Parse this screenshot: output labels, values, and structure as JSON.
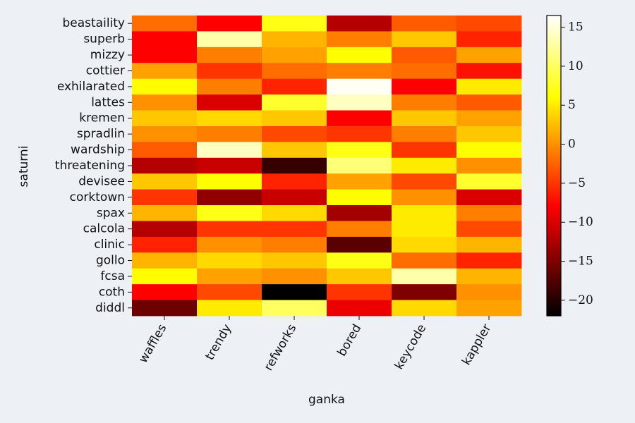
{
  "chart_data": {
    "type": "heatmap",
    "title": "",
    "xlabel": "ganka",
    "ylabel": "saturni",
    "colormap": "hot",
    "colorbar_range": [
      -22,
      16.5
    ],
    "colorbar_ticks": [
      -20,
      -15,
      -10,
      -5,
      0,
      5,
      10,
      15
    ],
    "colorbar_tick_labels": [
      "−20",
      "−15",
      "−10",
      "−5",
      "0",
      "5",
      "10",
      "15"
    ],
    "columns": [
      "waffles",
      "trendy",
      "refworks",
      "bored",
      "keycode",
      "kappler"
    ],
    "rows": [
      "beastaility",
      "superb",
      "mizzy",
      "cottier",
      "exhilarated",
      "lattes",
      "kremen",
      "spradlin",
      "wardship",
      "threatening",
      "devisee",
      "corktown",
      "spax",
      "calcola",
      "clinic",
      "gollo",
      "fcsa",
      "coth",
      "diddl"
    ],
    "values": [
      [
        -2,
        -8,
        7,
        -12,
        -3,
        -4
      ],
      [
        -8,
        13,
        2,
        -1,
        3,
        -6
      ],
      [
        -8,
        -1,
        1,
        6,
        -3,
        1
      ],
      [
        1,
        -5,
        -2,
        -1,
        -2,
        -7
      ],
      [
        6,
        -1,
        -6,
        16,
        -8,
        5
      ],
      [
        0,
        -10,
        8,
        14,
        -1,
        -3
      ],
      [
        3,
        4,
        3,
        -8,
        3,
        1
      ],
      [
        0,
        -1,
        -4,
        -5,
        -1,
        3
      ],
      [
        -3,
        14,
        3,
        7,
        -5,
        6
      ],
      [
        -12,
        -11,
        -19,
        11,
        5,
        0
      ],
      [
        3,
        6,
        -6,
        1,
        -4,
        8
      ],
      [
        -5,
        -14,
        -11,
        6,
        0,
        -10
      ],
      [
        2,
        7,
        4,
        -13,
        5,
        -1
      ],
      [
        -12,
        -5,
        -5,
        -1,
        5,
        -4
      ],
      [
        -6,
        0,
        -1,
        -17,
        4,
        2
      ],
      [
        2,
        4,
        3,
        7,
        -2,
        -6
      ],
      [
        6,
        1,
        0,
        3,
        13,
        2
      ],
      [
        -8,
        -4,
        -22,
        -5,
        -15,
        0
      ],
      [
        -16,
        5,
        10,
        -9,
        4,
        1
      ]
    ]
  }
}
